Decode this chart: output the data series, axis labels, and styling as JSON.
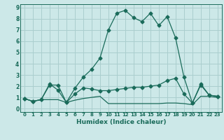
{
  "xlabel": "Humidex (Indice chaleur)",
  "background_color": "#cce8e8",
  "grid_color": "#aacece",
  "line_color": "#1a6b5a",
  "xlim": [
    -0.5,
    23.5
  ],
  "ylim": [
    -0.3,
    9.3
  ],
  "xticks": [
    0,
    1,
    2,
    3,
    4,
    5,
    6,
    7,
    8,
    9,
    10,
    11,
    12,
    13,
    14,
    15,
    16,
    17,
    18,
    19,
    20,
    21,
    22,
    23
  ],
  "yticks": [
    0,
    1,
    2,
    3,
    4,
    5,
    6,
    7,
    8,
    9
  ],
  "line1_x": [
    0,
    1,
    2,
    3,
    4,
    5,
    6,
    7,
    8,
    9,
    10,
    11,
    12,
    13,
    14,
    15,
    16,
    17,
    18,
    19,
    20,
    21,
    22,
    23
  ],
  "line1_y": [
    0.9,
    0.65,
    0.8,
    2.2,
    1.65,
    0.55,
    1.8,
    2.8,
    3.5,
    4.5,
    7.0,
    8.5,
    8.75,
    8.1,
    7.75,
    8.5,
    7.4,
    8.2,
    6.3,
    2.8,
    0.5,
    2.1,
    1.2,
    1.1
  ],
  "line2_x": [
    0,
    1,
    2,
    3,
    4,
    5,
    6,
    7,
    8,
    9,
    10,
    11,
    12,
    13,
    14,
    15,
    16,
    17,
    18,
    19,
    20,
    21,
    22,
    23
  ],
  "line2_y": [
    0.9,
    0.65,
    0.8,
    2.1,
    2.1,
    0.55,
    1.3,
    1.85,
    1.75,
    1.6,
    1.6,
    1.7,
    1.8,
    1.9,
    1.9,
    2.0,
    2.1,
    2.5,
    2.7,
    1.3,
    0.5,
    2.2,
    1.2,
    1.1
  ],
  "line3_x": [
    0,
    1,
    2,
    3,
    4,
    5,
    6,
    7,
    8,
    9,
    10,
    11,
    12,
    13,
    14,
    15,
    16,
    17,
    18,
    19,
    20,
    21,
    22,
    23
  ],
  "line3_y": [
    0.9,
    0.65,
    0.8,
    0.8,
    0.8,
    0.55,
    0.75,
    0.9,
    1.0,
    1.1,
    0.45,
    0.45,
    0.45,
    0.45,
    0.45,
    0.45,
    0.45,
    0.5,
    0.5,
    0.45,
    0.35,
    1.1,
    1.1,
    1.0
  ]
}
